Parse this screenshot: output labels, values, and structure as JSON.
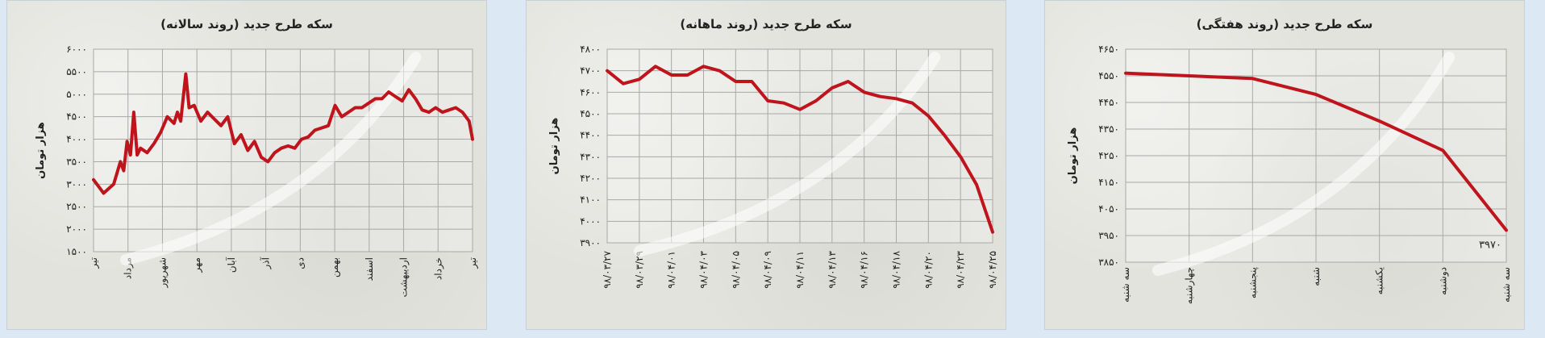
{
  "chart_data": [
    {
      "type": "line",
      "title": "سکه طرح جدید (روند سالانه)",
      "ylabel": "هزار تومان",
      "yticks": [
        "۱۵۰۰",
        "۲۰۰۰",
        "۲۵۰۰",
        "۳۰۰۰",
        "۳۵۰۰",
        "۴۰۰۰",
        "۴۵۰۰",
        "۵۰۰۰",
        "۵۵۰۰",
        "۶۰۰۰"
      ],
      "ylim": [
        1500,
        6000
      ],
      "xticks": [
        "تیر",
        "مرداد",
        "شهریور",
        "مهر",
        "آبان",
        "آذر",
        "دی",
        "بهمن",
        "اسفند",
        "اردیبهشت",
        "خرداد",
        "تیر"
      ],
      "grid": true,
      "color": "#c0141c",
      "x": [
        0,
        0.15,
        0.3,
        0.45,
        0.6,
        0.8,
        0.9,
        1,
        1.1,
        1.2,
        1.3,
        1.4,
        1.6,
        1.8,
        2,
        2.2,
        2.4,
        2.5,
        2.6,
        2.75,
        2.85,
        3,
        3.2,
        3.4,
        3.6,
        3.8,
        4,
        4.2,
        4.4,
        4.6,
        4.8,
        5,
        5.2,
        5.4,
        5.6,
        5.8,
        6,
        6.2,
        6.4,
        6.6,
        6.8,
        7,
        7.2,
        7.4,
        7.6,
        7.8,
        8,
        8.2,
        8.4,
        8.6,
        8.8,
        9,
        9.2,
        9.4,
        9.6,
        9.8,
        10,
        10.2,
        10.4,
        10.6,
        10.8,
        11,
        11.2,
        11.3
      ],
      "values": [
        3100,
        2950,
        2800,
        2900,
        3000,
        3500,
        3300,
        3950,
        3650,
        4600,
        3650,
        3800,
        3700,
        3900,
        4150,
        4500,
        4350,
        4600,
        4400,
        5450,
        4700,
        4750,
        4400,
        4600,
        4450,
        4300,
        4500,
        3900,
        4100,
        3750,
        3950,
        3600,
        3500,
        3700,
        3800,
        3850,
        3800,
        4000,
        4050,
        4200,
        4250,
        4300,
        4750,
        4500,
        4600,
        4700,
        4700,
        4800,
        4900,
        4900,
        5050,
        4950,
        4850,
        5100,
        4900,
        4650,
        4600,
        4700,
        4600,
        4650,
        4700,
        4600,
        4400,
        4000
      ]
    },
    {
      "type": "line",
      "title": "سکه طرح جدید (روند ماهانه)",
      "ylabel": "هزار تومان",
      "yticks": [
        "۳۹۰۰",
        "۴۰۰۰",
        "۴۱۰۰",
        "۴۲۰۰",
        "۴۳۰۰",
        "۴۴۰۰",
        "۴۵۰۰",
        "۴۶۰۰",
        "۴۷۰۰",
        "۴۸۰۰"
      ],
      "ylim": [
        3900,
        4800
      ],
      "xticks": [
        "۹۸/۰۳/۲۷",
        "۹۸/۰۳/۲۹",
        "۹۸/۰۴/۰۱",
        "۹۸/۰۴/۰۳",
        "۹۸/۰۴/۰۵",
        "۹۸/۰۴/۰۹",
        "۹۸/۰۴/۱۱",
        "۹۸/۰۴/۱۳",
        "۹۸/۰۴/۱۶",
        "۹۸/۰۴/۱۸",
        "۹۸/۰۴/۲۰",
        "۹۸/۰۴/۲۳",
        "۹۸/۰۴/۲۵"
      ],
      "grid": true,
      "color": "#c0141c",
      "x": [
        0,
        0.5,
        1,
        1.5,
        2,
        2.5,
        3,
        3.5,
        4,
        4.5,
        5,
        5.5,
        6,
        6.5,
        7,
        7.5,
        8,
        8.5,
        9,
        9.5,
        10,
        10.5,
        11,
        11.5,
        12
      ],
      "values": [
        4700,
        4640,
        4660,
        4720,
        4680,
        4680,
        4720,
        4700,
        4650,
        4650,
        4560,
        4550,
        4520,
        4560,
        4620,
        4650,
        4600,
        4580,
        4570,
        4550,
        4490,
        4400,
        4300,
        4170,
        3950
      ]
    },
    {
      "type": "line",
      "title": "سکه طرح جدید (روند هفتگی)",
      "ylabel": "هزار تومان",
      "yticks": [
        "۳۸۵۰",
        "۳۹۵۰",
        "۴۰۵۰",
        "۴۱۵۰",
        "۴۲۵۰",
        "۴۳۵۰",
        "۴۴۵۰",
        "۴۵۵۰",
        "۴۶۵۰"
      ],
      "ylim": [
        3850,
        4650
      ],
      "xticks": [
        "سه شنبه",
        "چهارشنبه",
        "پنجشنبه",
        "شنبه",
        "یکشنبه",
        "دوشنبه",
        "سه شنبه"
      ],
      "data_labels": [
        {
          "index": 6,
          "text": "۳۹۷۰"
        }
      ],
      "grid": true,
      "color": "#c0141c",
      "x": [
        0,
        1,
        2,
        3,
        4,
        5,
        6
      ],
      "values": [
        4560,
        4550,
        4540,
        4480,
        4380,
        4270,
        3970
      ]
    }
  ]
}
